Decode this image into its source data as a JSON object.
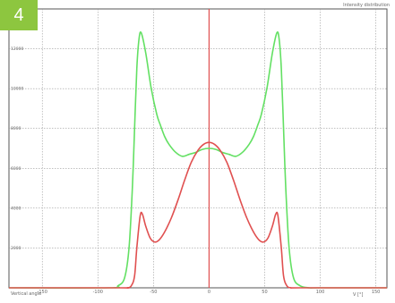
{
  "badge": {
    "number": "4",
    "color": "#8dc63f"
  },
  "chart_data": {
    "type": "line",
    "title": "Intensity distribution",
    "xlabel": "Vertical angle",
    "xunit": "V [°]",
    "ylabel": "",
    "xlim": [
      -180,
      160
    ],
    "ylim": [
      0,
      14000
    ],
    "grid": true,
    "xticks": [
      -150,
      -100,
      -50,
      0,
      50,
      100,
      150
    ],
    "yticks": [
      2000,
      4000,
      6000,
      8000,
      10000,
      12000
    ],
    "center_line": {
      "x": 0,
      "color": "#e05050"
    },
    "series": [
      {
        "color": "#63e063",
        "x": [
          -180,
          -90,
          -82,
          -76,
          -72,
          -69,
          -67,
          -65,
          -63,
          -61,
          -57,
          -52,
          -47,
          -44,
          -40,
          -36,
          -30,
          -24,
          -18,
          -12,
          -6,
          0,
          6,
          12,
          18,
          24,
          30,
          36,
          40,
          44,
          47,
          52,
          57,
          61,
          63,
          65,
          67,
          69,
          72,
          76,
          82,
          90,
          100,
          160
        ],
        "y": [
          0,
          0,
          100,
          500,
          2000,
          5000,
          8000,
          11000,
          12500,
          12800,
          11800,
          10000,
          8700,
          8200,
          7600,
          7200,
          6800,
          6600,
          6700,
          6800,
          6950,
          7000,
          6950,
          6800,
          6700,
          6600,
          6800,
          7200,
          7600,
          8200,
          8700,
          10000,
          11800,
          12800,
          12500,
          11000,
          8000,
          5000,
          2000,
          500,
          100,
          0,
          0,
          0
        ]
      },
      {
        "color": "#e05050",
        "x": [
          -180,
          -82,
          -74,
          -70,
          -67,
          -65,
          -62,
          -60,
          -57,
          -53,
          -49,
          -45,
          -40,
          -34,
          -28,
          -22,
          -16,
          -10,
          -5,
          0,
          5,
          10,
          16,
          22,
          28,
          34,
          40,
          45,
          49,
          53,
          57,
          60,
          62,
          65,
          67,
          70,
          74,
          82,
          160
        ],
        "y": [
          0,
          0,
          0,
          100,
          600,
          2000,
          3600,
          3700,
          3100,
          2500,
          2300,
          2400,
          2800,
          3500,
          4400,
          5400,
          6300,
          6900,
          7200,
          7300,
          7200,
          6900,
          6300,
          5400,
          4400,
          3500,
          2800,
          2400,
          2300,
          2500,
          3100,
          3700,
          3600,
          2000,
          600,
          100,
          0,
          0,
          0
        ]
      }
    ]
  }
}
